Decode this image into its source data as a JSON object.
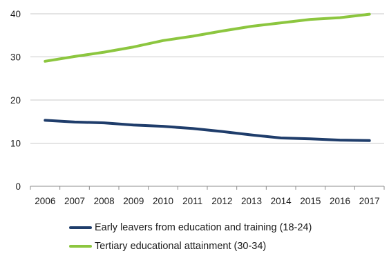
{
  "chart_data": {
    "type": "line",
    "title": "",
    "xlabel": "",
    "ylabel": "",
    "categories": [
      "2006",
      "2007",
      "2008",
      "2009",
      "2010",
      "2011",
      "2012",
      "2013",
      "2014",
      "2015",
      "2016",
      "2017"
    ],
    "ylim": [
      0,
      40
    ],
    "yticks": [
      0,
      10,
      20,
      30,
      40
    ],
    "grid": "horizontal",
    "legend_position": "bottom",
    "series": [
      {
        "name": "Early leavers from education and training (18-24)",
        "color": "#1f3d6b",
        "values": [
          15.3,
          14.9,
          14.7,
          14.2,
          13.9,
          13.4,
          12.7,
          11.9,
          11.2,
          11.0,
          10.7,
          10.6
        ]
      },
      {
        "name": "Tertiary educational attainment (30-34)",
        "color": "#8cc63f",
        "values": [
          29.0,
          30.1,
          31.1,
          32.3,
          33.8,
          34.8,
          36.0,
          37.1,
          37.9,
          38.7,
          39.1,
          39.9
        ]
      }
    ]
  }
}
